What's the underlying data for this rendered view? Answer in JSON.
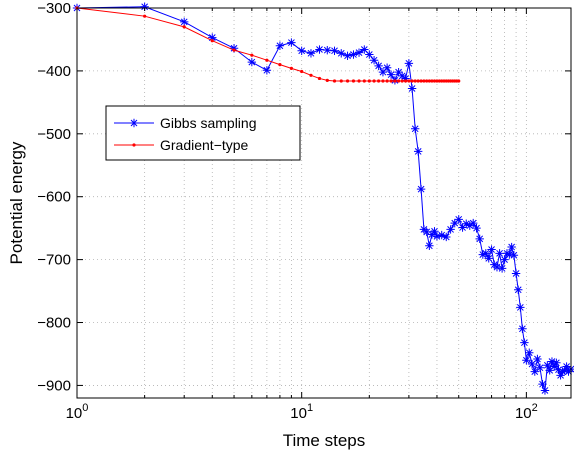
{
  "chart_data": {
    "type": "line",
    "title": "",
    "xlabel": "Time steps",
    "ylabel": "Potential energy",
    "xscale": "log",
    "xlim": [
      1,
      158
    ],
    "ylim": [
      -920,
      -300
    ],
    "x_ticks": [
      1,
      10,
      100
    ],
    "x_tick_labels": [
      {
        "base": "10",
        "exp": "0"
      },
      {
        "base": "10",
        "exp": "1"
      },
      {
        "base": "10",
        "exp": "2"
      }
    ],
    "y_ticks": [
      -300,
      -400,
      -500,
      -600,
      -700,
      -800,
      -900
    ],
    "y_tick_labels": [
      "−300",
      "−400",
      "−500",
      "−600",
      "−700",
      "−800",
      "−900"
    ],
    "grid": true,
    "legend_position": "left",
    "series": [
      {
        "name": "Gibbs sampling",
        "color": "#0000ff",
        "marker": "asterisk",
        "x": [
          1,
          2,
          3,
          4,
          5,
          6,
          7,
          8,
          9,
          10,
          11,
          12,
          13,
          14,
          15,
          16,
          17,
          18,
          19,
          20,
          21,
          22,
          23,
          24,
          25,
          26,
          27,
          28,
          29,
          30,
          31,
          32,
          33,
          34,
          35,
          36,
          37,
          38,
          39,
          40,
          42,
          44,
          46,
          48,
          50,
          52,
          54,
          56,
          58,
          60,
          62,
          64,
          66,
          68,
          70,
          72,
          74,
          76,
          78,
          80,
          82,
          84,
          86,
          88,
          90,
          92,
          94,
          96,
          98,
          100,
          103,
          106,
          109,
          112,
          115,
          118,
          121,
          124,
          127,
          130,
          133,
          136,
          139,
          142,
          145,
          148,
          151,
          154,
          158
        ],
        "y": [
          -300,
          -298,
          -322,
          -347,
          -364,
          -386,
          -399,
          -360,
          -355,
          -368,
          -372,
          -366,
          -367,
          -368,
          -372,
          -376,
          -374,
          -371,
          -366,
          -374,
          -383,
          -392,
          -402,
          -395,
          -406,
          -415,
          -402,
          -408,
          -412,
          -388,
          -428,
          -492,
          -528,
          -588,
          -652,
          -656,
          -678,
          -660,
          -655,
          -663,
          -661,
          -664,
          -652,
          -642,
          -636,
          -649,
          -643,
          -646,
          -642,
          -650,
          -667,
          -692,
          -690,
          -698,
          -684,
          -708,
          -712,
          -690,
          -714,
          -700,
          -690,
          -692,
          -680,
          -693,
          -722,
          -748,
          -776,
          -810,
          -832,
          -860,
          -848,
          -866,
          -878,
          -858,
          -872,
          -898,
          -908,
          -868,
          -876,
          -862,
          -870,
          -864,
          -875,
          -884,
          -878,
          -876,
          -870,
          -878,
          -874
        ]
      },
      {
        "name": "Gradient−type",
        "color": "#ff0000",
        "marker": "dot",
        "x": [
          1,
          2,
          3,
          4,
          5,
          6,
          7,
          8,
          9,
          10,
          11,
          12,
          13,
          14,
          15,
          16,
          17,
          18,
          19,
          20,
          21,
          22,
          23,
          24,
          25,
          26,
          27,
          28,
          29,
          30,
          31,
          32,
          33,
          34,
          35,
          36,
          37,
          38,
          39,
          40,
          41,
          42,
          43,
          44,
          45,
          46,
          47,
          48,
          49,
          50
        ],
        "y": [
          -300,
          -313,
          -330,
          -352,
          -367,
          -375,
          -383,
          -390,
          -396,
          -401,
          -407,
          -412,
          -415,
          -416,
          -416,
          -416,
          -416,
          -416,
          -416,
          -416,
          -416,
          -416,
          -416,
          -416,
          -416,
          -416,
          -416,
          -416,
          -416,
          -416,
          -416,
          -416,
          -416,
          -416,
          -416,
          -416,
          -416,
          -416,
          -416,
          -416,
          -416,
          -416,
          -416,
          -416,
          -416,
          -416,
          -416,
          -416,
          -416,
          -416
        ]
      }
    ]
  }
}
